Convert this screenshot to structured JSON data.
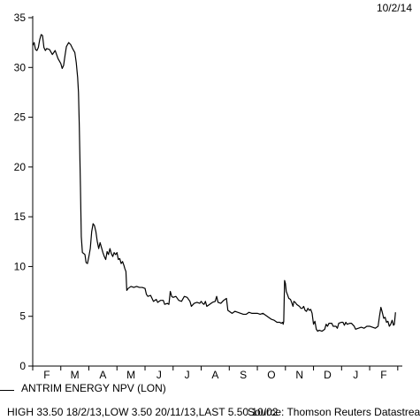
{
  "header": {
    "date": "10/2/14"
  },
  "legend": {
    "label": "ANTRIM ENERGY NPV (LON)"
  },
  "footer": {
    "stats": "HIGH 33.50 18/2/13,LOW 3.50 20/11/13,LAST 5.50 10/02",
    "source": "Source: Thomson Reuters Datastream"
  },
  "chart_data": {
    "type": "line",
    "title": "",
    "xlabel": "",
    "ylabel": "",
    "ylim": [
      0,
      35
    ],
    "yticks": [
      0,
      5,
      10,
      15,
      20,
      25,
      30,
      35
    ],
    "x_tick_labels": [
      "F",
      "M",
      "A",
      "M",
      "J",
      "J",
      "A",
      "S",
      "O",
      "N",
      "D",
      "J",
      "F"
    ],
    "x_unit": "months since start",
    "grid": false,
    "series": [
      {
        "name": "ANTRIM ENERGY NPV (LON)",
        "color": "#000000",
        "points": [
          [
            0.0,
            32.2
          ],
          [
            0.05,
            32.5
          ],
          [
            0.1,
            31.8
          ],
          [
            0.15,
            31.7
          ],
          [
            0.2,
            32.0
          ],
          [
            0.25,
            32.8
          ],
          [
            0.3,
            33.3
          ],
          [
            0.35,
            33.2
          ],
          [
            0.4,
            32.0
          ],
          [
            0.45,
            31.7
          ],
          [
            0.5,
            31.9
          ],
          [
            0.6,
            31.8
          ],
          [
            0.7,
            31.3
          ],
          [
            0.8,
            31.7
          ],
          [
            0.9,
            30.9
          ],
          [
            1.0,
            30.4
          ],
          [
            1.05,
            29.9
          ],
          [
            1.1,
            30.2
          ],
          [
            1.15,
            31.2
          ],
          [
            1.2,
            32.1
          ],
          [
            1.28,
            32.5
          ],
          [
            1.35,
            32.3
          ],
          [
            1.42,
            31.9
          ],
          [
            1.5,
            31.5
          ],
          [
            1.55,
            30.5
          ],
          [
            1.6,
            29.0
          ],
          [
            1.63,
            27.5
          ],
          [
            1.66,
            24.0
          ],
          [
            1.7,
            18.0
          ],
          [
            1.73,
            13.0
          ],
          [
            1.77,
            11.4
          ],
          [
            1.82,
            11.3
          ],
          [
            1.86,
            11.2
          ],
          [
            1.9,
            10.4
          ],
          [
            1.95,
            10.3
          ],
          [
            2.0,
            11.0
          ],
          [
            2.05,
            11.8
          ],
          [
            2.1,
            13.5
          ],
          [
            2.15,
            14.3
          ],
          [
            2.2,
            14.1
          ],
          [
            2.25,
            13.5
          ],
          [
            2.3,
            12.5
          ],
          [
            2.35,
            11.8
          ],
          [
            2.4,
            12.4
          ],
          [
            2.45,
            11.9
          ],
          [
            2.5,
            11.4
          ],
          [
            2.55,
            11.0
          ],
          [
            2.6,
            10.7
          ],
          [
            2.65,
            11.5
          ],
          [
            2.7,
            11.2
          ],
          [
            2.75,
            11.8
          ],
          [
            2.8,
            11.3
          ],
          [
            2.85,
            11.0
          ],
          [
            2.9,
            11.4
          ],
          [
            2.95,
            11.2
          ],
          [
            3.0,
            11.4
          ],
          [
            3.05,
            10.7
          ],
          [
            3.1,
            10.8
          ],
          [
            3.15,
            10.3
          ],
          [
            3.2,
            10.5
          ],
          [
            3.25,
            10.1
          ],
          [
            3.28,
            9.8
          ],
          [
            3.32,
            9.5
          ],
          [
            3.35,
            7.6
          ],
          [
            3.4,
            7.8
          ],
          [
            3.45,
            7.9
          ],
          [
            3.5,
            8.0
          ],
          [
            3.6,
            7.9
          ],
          [
            3.7,
            8.0
          ],
          [
            3.8,
            7.9
          ],
          [
            3.9,
            7.9
          ],
          [
            4.0,
            7.8
          ],
          [
            4.05,
            7.2
          ],
          [
            4.1,
            7.0
          ],
          [
            4.2,
            7.1
          ],
          [
            4.3,
            6.5
          ],
          [
            4.4,
            6.7
          ],
          [
            4.45,
            6.4
          ],
          [
            4.55,
            6.6
          ],
          [
            4.65,
            6.6
          ],
          [
            4.7,
            6.2
          ],
          [
            4.8,
            6.3
          ],
          [
            4.85,
            6.2
          ],
          [
            4.9,
            7.5
          ],
          [
            4.95,
            7.0
          ],
          [
            5.0,
            6.9
          ],
          [
            5.1,
            7.0
          ],
          [
            5.2,
            6.6
          ],
          [
            5.3,
            6.5
          ],
          [
            5.4,
            7.0
          ],
          [
            5.5,
            6.9
          ],
          [
            5.6,
            6.5
          ],
          [
            5.65,
            6.0
          ],
          [
            5.75,
            6.3
          ],
          [
            5.85,
            6.4
          ],
          [
            5.95,
            6.3
          ],
          [
            6.0,
            6.5
          ],
          [
            6.05,
            6.3
          ],
          [
            6.1,
            6.2
          ],
          [
            6.15,
            6.5
          ],
          [
            6.2,
            6.0
          ],
          [
            6.3,
            6.2
          ],
          [
            6.4,
            6.4
          ],
          [
            6.5,
            6.5
          ],
          [
            6.55,
            7.0
          ],
          [
            6.6,
            6.4
          ],
          [
            6.7,
            6.3
          ],
          [
            6.8,
            6.6
          ],
          [
            6.9,
            6.8
          ],
          [
            6.95,
            5.6
          ],
          [
            7.0,
            5.5
          ],
          [
            7.1,
            5.3
          ],
          [
            7.2,
            5.5
          ],
          [
            7.3,
            5.4
          ],
          [
            7.4,
            5.3
          ],
          [
            7.5,
            5.2
          ],
          [
            7.6,
            5.2
          ],
          [
            7.7,
            5.4
          ],
          [
            7.8,
            5.3
          ],
          [
            7.9,
            5.3
          ],
          [
            8.0,
            5.3
          ],
          [
            8.1,
            5.2
          ],
          [
            8.2,
            5.3
          ],
          [
            8.3,
            5.1
          ],
          [
            8.35,
            5.0
          ],
          [
            8.4,
            4.9
          ],
          [
            8.5,
            4.7
          ],
          [
            8.6,
            4.6
          ],
          [
            8.7,
            4.4
          ],
          [
            8.8,
            4.4
          ],
          [
            8.85,
            4.3
          ],
          [
            8.9,
            4.4
          ],
          [
            8.92,
            4.2
          ],
          [
            8.94,
            4.5
          ],
          [
            8.97,
            8.6
          ],
          [
            9.0,
            8.3
          ],
          [
            9.03,
            7.5
          ],
          [
            9.07,
            7.2
          ],
          [
            9.12,
            6.8
          ],
          [
            9.18,
            6.7
          ],
          [
            9.22,
            6.4
          ],
          [
            9.27,
            6.0
          ],
          [
            9.3,
            6.5
          ],
          [
            9.35,
            6.4
          ],
          [
            9.4,
            6.2
          ],
          [
            9.5,
            6.0
          ],
          [
            9.55,
            5.8
          ],
          [
            9.6,
            5.8
          ],
          [
            9.65,
            6.0
          ],
          [
            9.7,
            5.6
          ],
          [
            9.75,
            5.5
          ],
          [
            9.8,
            5.8
          ],
          [
            9.85,
            5.6
          ],
          [
            9.9,
            5.7
          ],
          [
            9.95,
            5.3
          ],
          [
            10.0,
            4.2
          ],
          [
            10.05,
            4.5
          ],
          [
            10.1,
            3.7
          ],
          [
            10.15,
            3.5
          ],
          [
            10.2,
            3.6
          ],
          [
            10.3,
            3.5
          ],
          [
            10.4,
            3.7
          ],
          [
            10.45,
            4.2
          ],
          [
            10.5,
            4.0
          ],
          [
            10.55,
            4.3
          ],
          [
            10.65,
            4.3
          ],
          [
            10.7,
            4.0
          ],
          [
            10.8,
            4.0
          ],
          [
            10.85,
            3.8
          ],
          [
            10.9,
            4.3
          ],
          [
            11.0,
            4.4
          ],
          [
            11.05,
            4.4
          ],
          [
            11.1,
            4.1
          ],
          [
            11.15,
            4.4
          ],
          [
            11.2,
            4.2
          ],
          [
            11.3,
            4.3
          ],
          [
            11.35,
            4.3
          ],
          [
            11.45,
            4.0
          ],
          [
            11.5,
            3.7
          ],
          [
            11.6,
            3.8
          ],
          [
            11.7,
            3.9
          ],
          [
            11.8,
            3.8
          ],
          [
            11.9,
            4.0
          ],
          [
            12.0,
            4.0
          ],
          [
            12.1,
            3.9
          ],
          [
            12.2,
            3.8
          ],
          [
            12.3,
            4.0
          ],
          [
            12.35,
            5.0
          ],
          [
            12.4,
            5.9
          ],
          [
            12.45,
            5.4
          ],
          [
            12.5,
            4.8
          ],
          [
            12.55,
            4.9
          ],
          [
            12.6,
            4.4
          ],
          [
            12.65,
            4.5
          ],
          [
            12.7,
            4.0
          ],
          [
            12.75,
            4.2
          ],
          [
            12.8,
            4.6
          ],
          [
            12.85,
            4.1
          ],
          [
            12.88,
            4.2
          ],
          [
            12.92,
            5.4
          ]
        ]
      }
    ]
  }
}
